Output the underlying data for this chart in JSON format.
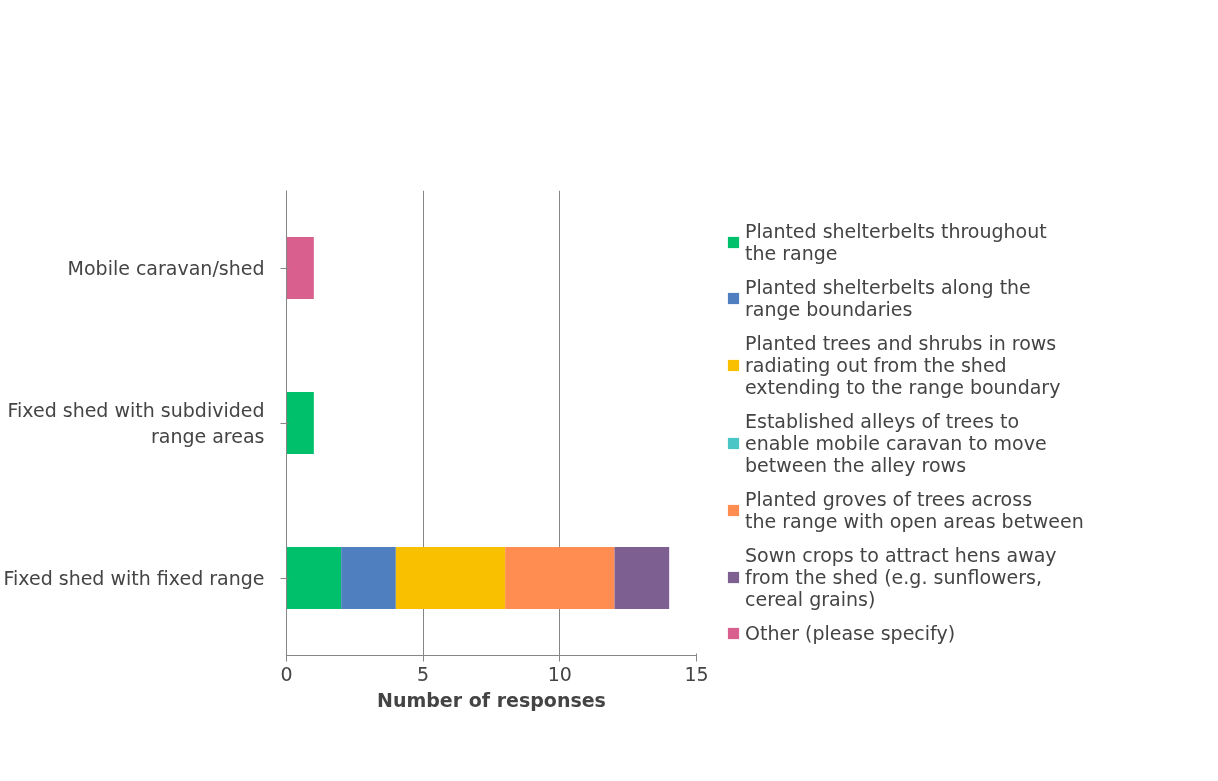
{
  "chart_data": {
    "type": "bar",
    "orientation": "horizontal",
    "stacked": true,
    "xlabel": "Number of responses",
    "categories": [
      "Mobile caravan/shed",
      "Fixed shed with subdivided range areas",
      "Fixed shed with fixed range"
    ],
    "series": [
      {
        "name": "Planted shelterbelts throughout the range",
        "color": "#00c06b",
        "values": [
          0,
          1,
          2
        ]
      },
      {
        "name": "Planted shelterbelts along the range boundaries",
        "color": "#4f7fbf",
        "values": [
          0,
          0,
          2
        ]
      },
      {
        "name": "Planted trees and shrubs in rows radiating out from the shed extending to the range boundary",
        "color": "#f9c000",
        "values": [
          0,
          0,
          4
        ]
      },
      {
        "name": "Established alleys of trees to enable mobile caravan to move between the alley rows",
        "color": "#4bc6c6",
        "values": [
          0,
          0,
          0
        ]
      },
      {
        "name": "Planted groves of trees across the range with open areas between",
        "color": "#ff8c50",
        "values": [
          0,
          0,
          4
        ]
      },
      {
        "name": "Sown crops to attract hens away from the shed (e.g. sunflowers, cereal grains)",
        "color": "#7e5f92",
        "values": [
          0,
          0,
          2
        ]
      },
      {
        "name": "Other (please specify)",
        "color": "#d9608e",
        "values": [
          1,
          0,
          0
        ]
      }
    ],
    "xlim": [
      0,
      15
    ],
    "xticks": [
      0,
      5,
      10,
      15
    ],
    "grid": "x",
    "legend": "right"
  }
}
